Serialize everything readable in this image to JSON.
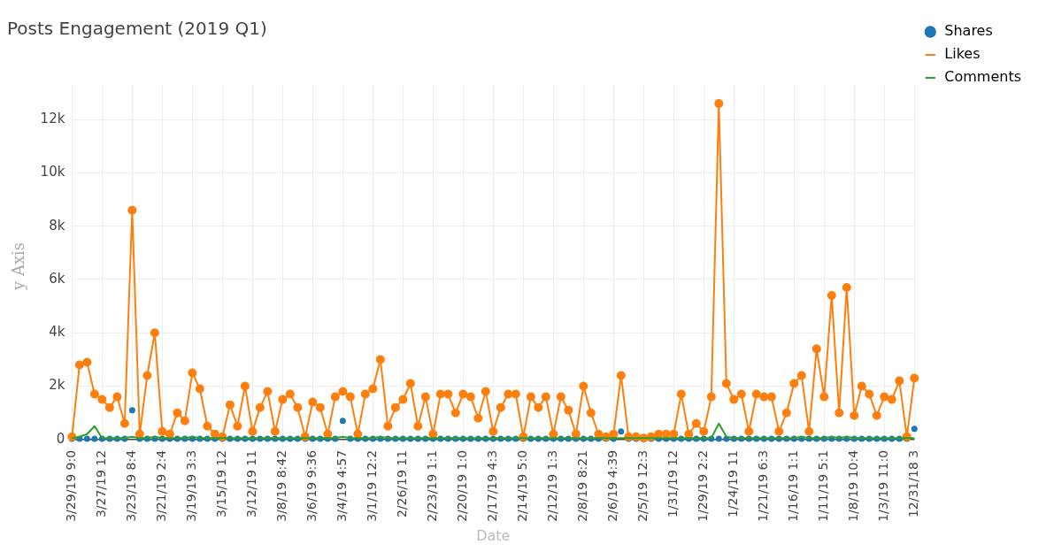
{
  "chart_data": {
    "type": "line",
    "title": "Posts Engagement (2019 Q1)",
    "xlabel": "Date",
    "ylabel": "y Axis",
    "categories": [
      "3/29/19 9:0",
      null,
      null,
      null,
      "3/27/19 12",
      null,
      null,
      null,
      "3/23/19 8:4",
      null,
      null,
      null,
      "3/21/19 2:4",
      null,
      null,
      null,
      "3/19/19 3:3",
      null,
      null,
      null,
      "3/15/19 12",
      null,
      null,
      null,
      "3/12/19 11",
      null,
      null,
      null,
      "3/8/19 8:42",
      null,
      null,
      null,
      "3/6/19 9:36",
      null,
      null,
      null,
      "3/4/19 4:57",
      null,
      null,
      null,
      "3/1/19 12:2",
      null,
      null,
      null,
      "2/26/19 11",
      null,
      null,
      null,
      "2/23/19 1:1",
      null,
      null,
      null,
      "2/20/19 1:0",
      null,
      null,
      null,
      "2/17/19 4:3",
      null,
      null,
      null,
      "2/14/19 5:0",
      null,
      null,
      null,
      "2/12/19 1:3",
      null,
      null,
      null,
      "2/8/19 8:21",
      null,
      null,
      null,
      "2/6/19 4:39",
      null,
      null,
      null,
      "2/5/19 12:3",
      null,
      null,
      null,
      "1/31/19 12",
      null,
      null,
      null,
      "1/29/19 2:2",
      null,
      null,
      null,
      "1/24/19 11",
      null,
      null,
      null,
      "1/21/19 6:3",
      null,
      null,
      null,
      "1/16/19 1:1",
      null,
      null,
      null,
      "1/11/19 5:1",
      null,
      null,
      null,
      "1/8/19 10:4",
      null,
      null,
      null,
      "1/3/19 11:0",
      null,
      null,
      null,
      "12/31/18 3"
    ],
    "series": [
      {
        "name": "Shares",
        "type": "scatter",
        "marker": "circle",
        "color": "#1f77b4",
        "values": [
          30,
          30,
          30,
          30,
          30,
          30,
          30,
          30,
          1100,
          30,
          30,
          30,
          30,
          30,
          30,
          30,
          30,
          30,
          30,
          30,
          30,
          30,
          30,
          30,
          30,
          30,
          30,
          30,
          30,
          30,
          30,
          30,
          30,
          30,
          30,
          30,
          700,
          30,
          30,
          30,
          30,
          30,
          30,
          30,
          30,
          30,
          30,
          30,
          30,
          30,
          30,
          30,
          30,
          30,
          30,
          30,
          30,
          30,
          30,
          30,
          30,
          30,
          30,
          30,
          30,
          30,
          30,
          30,
          30,
          30,
          30,
          30,
          30,
          300,
          30,
          30,
          null,
          30,
          30,
          30,
          30,
          30,
          30,
          30,
          30,
          30,
          30,
          30,
          30,
          30,
          30,
          30,
          30,
          30,
          30,
          30,
          30,
          30,
          30,
          30,
          30,
          30,
          30,
          30,
          30,
          30,
          30,
          30,
          30,
          30,
          30,
          30,
          400
        ]
      },
      {
        "name": "Likes",
        "type": "line",
        "marker": "circle",
        "color": "#ff7f0e",
        "values": [
          100,
          2800,
          2900,
          1700,
          1500,
          1200,
          1600,
          600,
          8600,
          200,
          2400,
          4000,
          300,
          200,
          1000,
          700,
          2500,
          1900,
          500,
          200,
          100,
          1300,
          500,
          2000,
          300,
          1200,
          1800,
          300,
          1500,
          1700,
          1200,
          100,
          1400,
          1200,
          200,
          1600,
          1800,
          1600,
          200,
          1700,
          1900,
          3000,
          500,
          1200,
          1500,
          2100,
          500,
          1600,
          200,
          1700,
          1700,
          1000,
          1700,
          1600,
          800,
          1800,
          300,
          1200,
          1700,
          1700,
          100,
          1600,
          1200,
          1600,
          200,
          1600,
          1100,
          200,
          2000,
          1000,
          200,
          100,
          200,
          2400,
          100,
          100,
          50,
          100,
          200,
          200,
          200,
          1700,
          200,
          600,
          300,
          1600,
          12600,
          2100,
          1500,
          1700,
          300,
          1700,
          1600,
          1600,
          300,
          1000,
          2100,
          2400,
          300,
          3400,
          1600,
          5400,
          1000,
          5700,
          900,
          2000,
          1700,
          900,
          1600,
          1500,
          2200,
          100,
          2300
        ]
      },
      {
        "name": "Comments",
        "type": "line",
        "marker": "none",
        "color": "#2ca02c",
        "values": [
          50,
          100,
          200,
          500,
          50,
          50,
          50,
          50,
          100,
          50,
          50,
          100,
          50,
          50,
          50,
          50,
          100,
          50,
          50,
          50,
          50,
          50,
          50,
          50,
          50,
          50,
          50,
          50,
          50,
          50,
          50,
          50,
          50,
          50,
          50,
          50,
          100,
          50,
          50,
          50,
          50,
          100,
          50,
          50,
          50,
          50,
          50,
          50,
          50,
          50,
          50,
          50,
          50,
          50,
          50,
          50,
          50,
          50,
          50,
          50,
          50,
          50,
          50,
          50,
          50,
          50,
          50,
          50,
          50,
          50,
          50,
          50,
          50,
          50,
          50,
          50,
          50,
          50,
          50,
          50,
          50,
          50,
          50,
          50,
          50,
          50,
          600,
          100,
          50,
          50,
          50,
          50,
          50,
          50,
          50,
          50,
          50,
          100,
          50,
          50,
          50,
          100,
          50,
          100,
          50,
          50,
          50,
          50,
          50,
          50,
          50,
          50,
          50
        ]
      }
    ],
    "ylim": [
      -300,
      13300
    ],
    "yticks": [
      0,
      {
        "value": 2000,
        "label": "2k"
      },
      {
        "value": 4000,
        "label": "4k"
      },
      {
        "value": 6000,
        "label": "6k"
      },
      {
        "value": 8000,
        "label": "8k"
      },
      {
        "value": 10000,
        "label": "10k"
      },
      {
        "value": 12000,
        "label": "12k"
      }
    ],
    "grid": true,
    "legend": "top right"
  }
}
